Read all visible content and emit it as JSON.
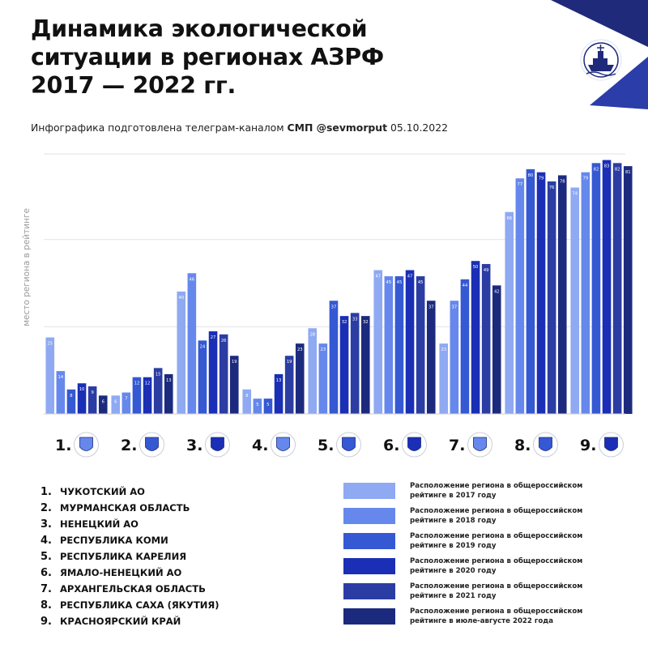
{
  "header": {
    "title_lines": [
      "Динамика экологической",
      "ситуации в регионах АЗРФ",
      "2017 — 2022 гг."
    ],
    "subtitle_prefix": "Инфографика подготовлена телеграм-каналом",
    "subtitle_channel": "СМП @sevmorput",
    "subtitle_date": "05.10.2022"
  },
  "logo": {
    "icon": "ship-emblem-icon",
    "accent_color": "#1f2a7a"
  },
  "chart_data": {
    "type": "bar",
    "ylabel": "место региона в рейтинге",
    "ylim": [
      0,
      85
    ],
    "categories": [
      "1.",
      "2.",
      "3.",
      "4.",
      "5.",
      "6.",
      "7.",
      "8.",
      "9."
    ],
    "series": [
      {
        "name": "Расположение региона в общероссийском рейтинге в 2017 году",
        "color": "#8fa9f2",
        "values": [
          25,
          6,
          40,
          8,
          28,
          47,
          23,
          66,
          74
        ]
      },
      {
        "name": "Расположение региона в общероссийском рейтинге в 2018 году",
        "color": "#6688ec",
        "values": [
          14,
          7,
          46,
          5,
          23,
          45,
          37,
          77,
          79
        ]
      },
      {
        "name": "Расположение региона в общероссийском рейтинге в 2019 году",
        "color": "#3558d3",
        "values": [
          8,
          12,
          24,
          5,
          37,
          45,
          44,
          80,
          82
        ]
      },
      {
        "name": "Расположение региона в общероссийском рейтинге в 2020 году",
        "color": "#1a2fb5",
        "values": [
          10,
          12,
          27,
          13,
          32,
          47,
          50,
          79,
          83
        ]
      },
      {
        "name": "Расположение региона в общероссийском рейтинге в 2021 году",
        "color": "#2b3da3",
        "values": [
          9,
          15,
          26,
          19,
          33,
          45,
          49,
          76,
          82
        ]
      },
      {
        "name": "Расположение региона в общероссийском рейтинге в июле-августе 2022 года",
        "color": "#1c2a7e",
        "values": [
          6,
          13,
          19,
          23,
          32,
          37,
          42,
          78,
          81
        ]
      }
    ],
    "region_icons": [
      "chukotka-emblem-icon",
      "murmansk-emblem-icon",
      "nenets-emblem-icon",
      "komi-emblem-icon",
      "karelia-emblem-icon",
      "yamal-emblem-icon",
      "arkhangelsk-emblem-icon",
      "sakha-emblem-icon",
      "krasnoyarsk-emblem-icon"
    ],
    "grid": true
  },
  "regions": [
    {
      "num": "1.",
      "name": "ЧУКОТСКИЙ АО"
    },
    {
      "num": "2.",
      "name": "МУРМАНСКАЯ ОБЛАСТЬ"
    },
    {
      "num": "3.",
      "name": "НЕНЕЦКИЙ АО"
    },
    {
      "num": "4.",
      "name": "РЕСПУБЛИКА КОМИ"
    },
    {
      "num": "5.",
      "name": "РЕСПУБЛИКА КАРЕЛИЯ"
    },
    {
      "num": "6.",
      "name": "ЯМАЛО-НЕНЕЦКИЙ АО"
    },
    {
      "num": "7.",
      "name": "АРХАНГЕЛЬСКАЯ ОБЛАСТЬ"
    },
    {
      "num": "8.",
      "name": "РЕСПУБЛИКА САХА (ЯКУТИЯ)"
    },
    {
      "num": "9.",
      "name": "КРАСНОЯРСКИЙ КРАЙ"
    }
  ]
}
